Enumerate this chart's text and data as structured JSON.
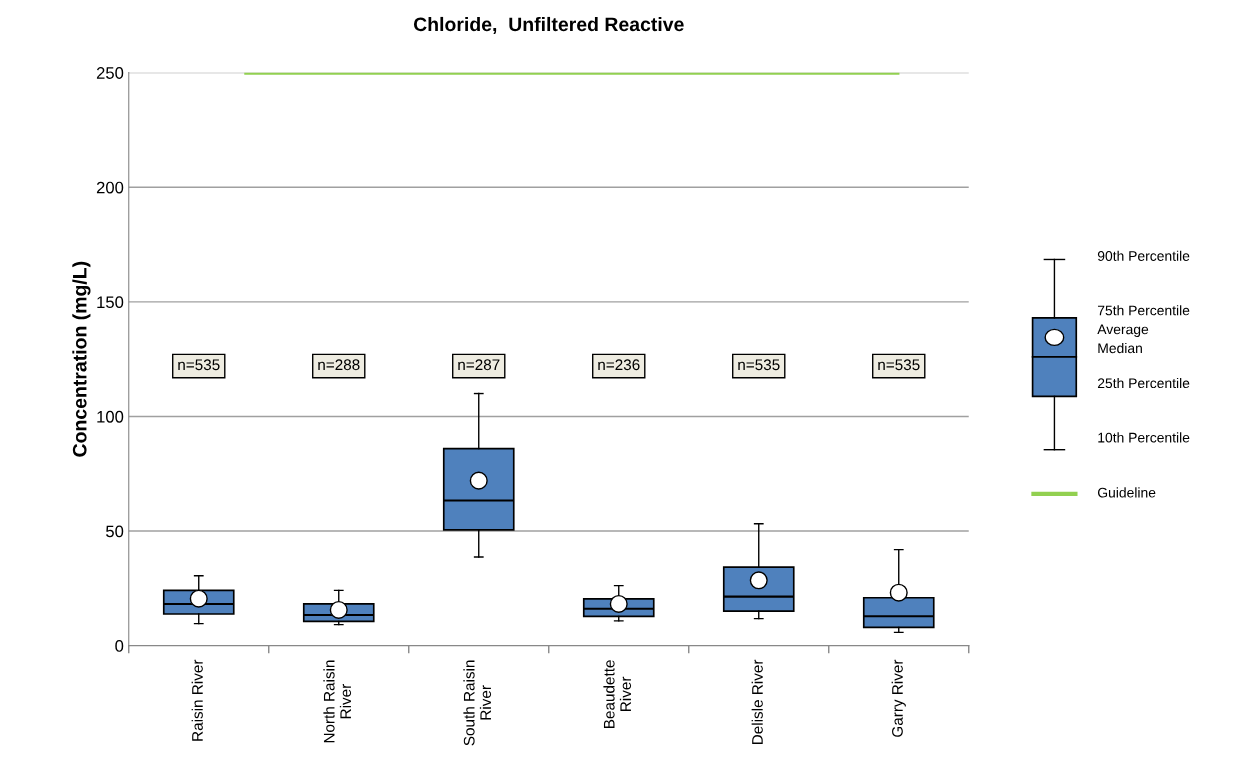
{
  "chart_data": {
    "type": "box",
    "title": "Chloride,  Unfiltered Reactive",
    "ylabel": "Concentration (mg/L)",
    "categories": [
      "Raisin River",
      "North Raisin\nRiver",
      "South Raisin\nRiver",
      "Beaudette\nRiver",
      "Delisle River",
      "Garry River"
    ],
    "color": "#4f81bd",
    "boxes": [
      {
        "low": 9.6,
        "q1": 13.8,
        "median": 18.2,
        "q3": 24.1,
        "high": 30.5,
        "mean": 20.5
      },
      {
        "low": 9.2,
        "q1": 10.6,
        "median": 13.4,
        "q3": 18.2,
        "high": 24.1,
        "mean": 15.6
      },
      {
        "low": 38.7,
        "q1": 50.5,
        "median": 63.3,
        "q3": 86,
        "high": 110,
        "mean": 72
      },
      {
        "low": 10.8,
        "q1": 12.8,
        "median": 16.1,
        "q3": 20.4,
        "high": 26.2,
        "mean": 18.2
      },
      {
        "low": 11.8,
        "q1": 15.1,
        "median": 21.4,
        "q3": 34.3,
        "high": 53.2,
        "mean": 28.5
      },
      {
        "low": 5.8,
        "q1": 8.0,
        "median": 12.8,
        "q3": 20.9,
        "high": 41.9,
        "mean": 23.1
      }
    ],
    "ylim": [
      0,
      250
    ],
    "yticks": [
      0,
      50,
      100,
      150,
      200,
      250
    ],
    "grid": "y",
    "legend": "right",
    "ref_lines": [
      {
        "axis": "y",
        "value": 250,
        "label": "Guideline",
        "color": "#92d050"
      }
    ],
    "annotations": [
      "n=535",
      "n=288",
      "n=287",
      "n=236",
      "n=535",
      "n=535",
      "90th Percentile",
      "75th Percentile",
      "Average",
      "Median",
      "25th Percentile",
      "10th Percentile"
    ]
  }
}
